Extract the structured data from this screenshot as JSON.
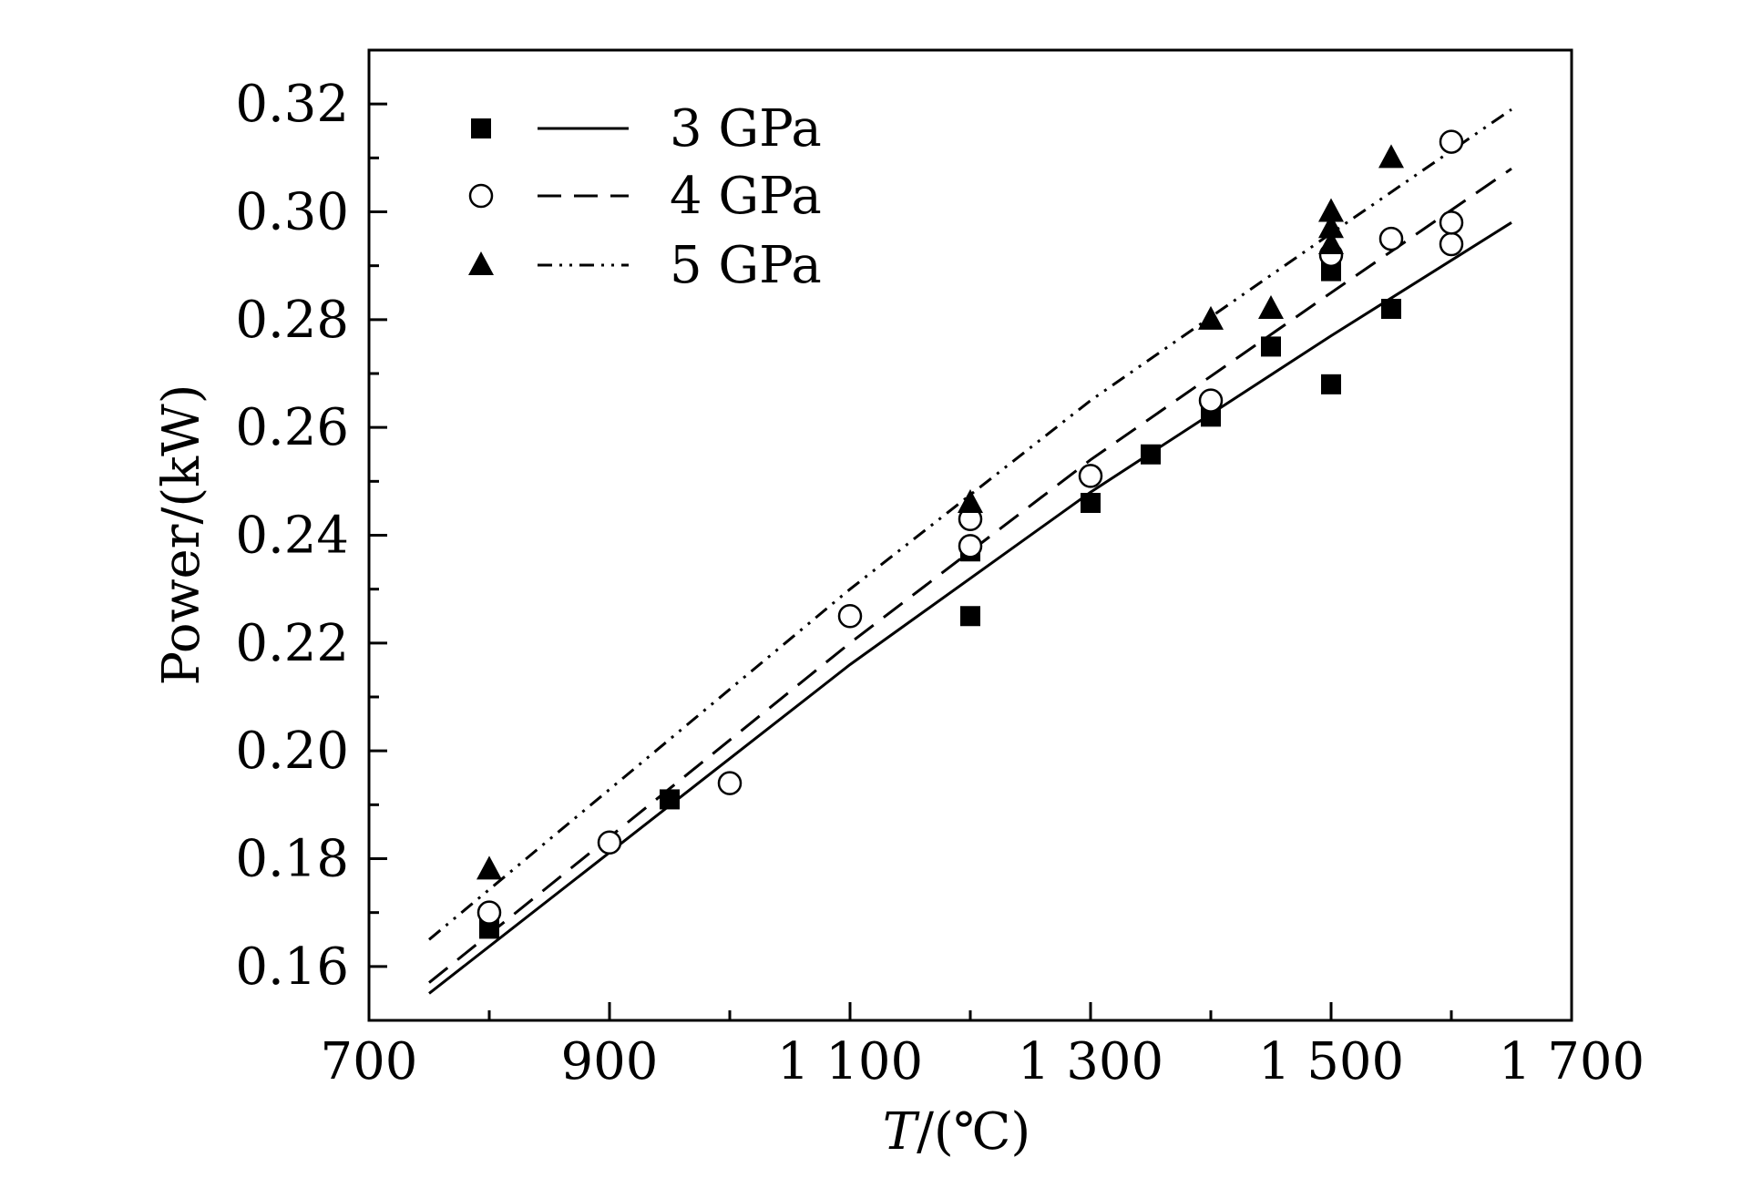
{
  "chart_data": {
    "type": "scatter",
    "title": "",
    "xlabel": {
      "var": "T",
      "unit": "/(℃)"
    },
    "ylabel": "Power/(kW)",
    "xlim": [
      700,
      1700
    ],
    "ylim": [
      0.15,
      0.33
    ],
    "x_ticks": [
      700,
      900,
      1100,
      1300,
      1500,
      1700
    ],
    "x_tick_labels": [
      "700",
      "900",
      "1 100",
      "1 300",
      "1 500",
      "1 700"
    ],
    "y_ticks": [
      0.16,
      0.18,
      0.2,
      0.22,
      0.24,
      0.26,
      0.28,
      0.3,
      0.32
    ],
    "y_tick_labels": [
      "0.16",
      "0.18",
      "0.20",
      "0.22",
      "0.24",
      "0.26",
      "0.28",
      "0.30",
      "0.32"
    ],
    "grid": false,
    "legend_position": "top-left",
    "series": [
      {
        "name": "3 GPa",
        "marker": "filled-square",
        "line_style": "solid",
        "points": [
          [
            800,
            0.167
          ],
          [
            950,
            0.191
          ],
          [
            1200,
            0.225
          ],
          [
            1200,
            0.237
          ],
          [
            1300,
            0.246
          ],
          [
            1350,
            0.255
          ],
          [
            1400,
            0.262
          ],
          [
            1450,
            0.275
          ],
          [
            1500,
            0.268
          ],
          [
            1500,
            0.289
          ],
          [
            1550,
            0.282
          ]
        ],
        "fit_line": [
          [
            750,
            0.155
          ],
          [
            1100,
            0.216
          ],
          [
            1300,
            0.248
          ],
          [
            1500,
            0.277
          ],
          [
            1650,
            0.298
          ]
        ]
      },
      {
        "name": "4 GPa",
        "marker": "open-circle",
        "line_style": "dashed",
        "points": [
          [
            800,
            0.17
          ],
          [
            900,
            0.183
          ],
          [
            1000,
            0.194
          ],
          [
            1100,
            0.225
          ],
          [
            1200,
            0.238
          ],
          [
            1200,
            0.243
          ],
          [
            1300,
            0.251
          ],
          [
            1400,
            0.265
          ],
          [
            1500,
            0.292
          ],
          [
            1550,
            0.295
          ],
          [
            1600,
            0.294
          ],
          [
            1600,
            0.298
          ],
          [
            1600,
            0.313
          ]
        ],
        "fit_line": [
          [
            750,
            0.157
          ],
          [
            1100,
            0.22
          ],
          [
            1300,
            0.254
          ],
          [
            1500,
            0.285
          ],
          [
            1650,
            0.308
          ]
        ]
      },
      {
        "name": "5 GPa",
        "marker": "filled-triangle",
        "line_style": "dash-dot-dot",
        "points": [
          [
            800,
            0.178
          ],
          [
            1200,
            0.246
          ],
          [
            1400,
            0.28
          ],
          [
            1450,
            0.282
          ],
          [
            1500,
            0.294
          ],
          [
            1500,
            0.297
          ],
          [
            1500,
            0.3
          ],
          [
            1550,
            0.31
          ]
        ],
        "fit_line": [
          [
            750,
            0.165
          ],
          [
            1100,
            0.23
          ],
          [
            1300,
            0.265
          ],
          [
            1500,
            0.296
          ],
          [
            1650,
            0.319
          ]
        ]
      }
    ]
  },
  "colors": {
    "ink": "#000000",
    "background": "#ffffff"
  }
}
